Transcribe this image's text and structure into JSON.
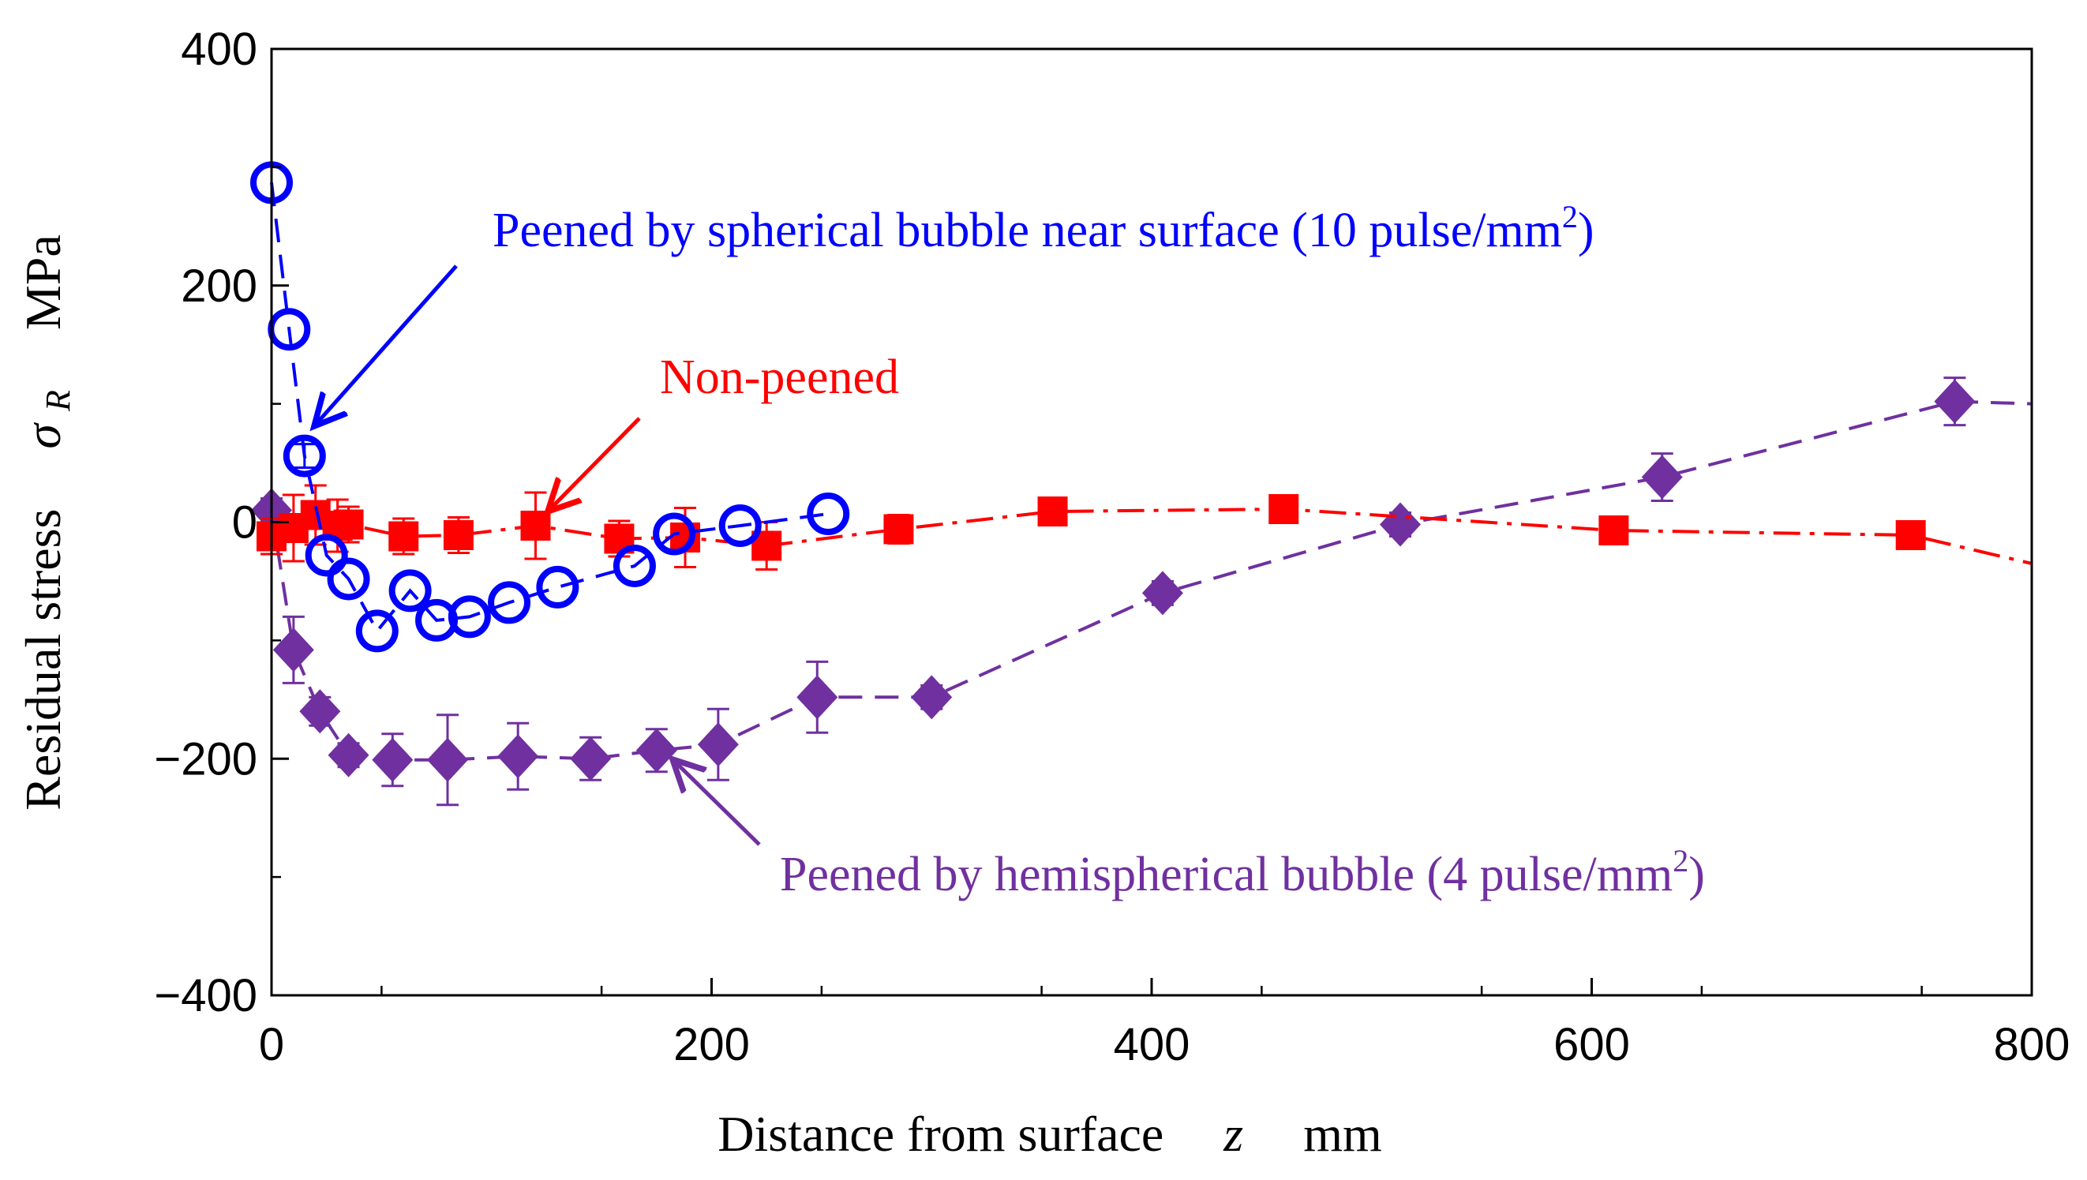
{
  "chart_data": {
    "type": "scatter",
    "title": "",
    "xlabel": {
      "text": "Distance from surface",
      "var": "z",
      "unit": "mm"
    },
    "ylabel": {
      "text": "Residual stress",
      "var": "σ",
      "sub": "R",
      "unit": "MPa"
    },
    "xlim": [
      0,
      800
    ],
    "ylim": [
      -400,
      400
    ],
    "xticks": [
      "0",
      "200",
      "400",
      "600",
      "800"
    ],
    "yticks": [
      "400",
      "200",
      "0",
      "−200",
      "−400"
    ],
    "xtick_values": [
      0,
      200,
      400,
      600,
      800
    ],
    "ytick_values": [
      400,
      200,
      0,
      -200,
      -400
    ],
    "grid": false,
    "series": [
      {
        "name": "Non-peened",
        "color": "#ff0000",
        "marker": "square",
        "line": "dash-dot",
        "x": [
          0,
          10,
          20,
          30,
          35,
          60,
          85,
          120,
          158,
          188,
          225,
          285,
          355,
          460,
          610,
          745,
          800
        ],
        "y": [
          -12,
          -5,
          6,
          -3,
          -2,
          -12,
          -11,
          -3,
          -14,
          -13,
          -20,
          -6,
          9,
          11,
          -7,
          -11,
          -35
        ],
        "err": [
          15,
          28,
          25,
          22,
          15,
          15,
          15,
          28,
          15,
          25,
          20,
          12,
          8,
          8,
          8,
          8,
          0
        ]
      },
      {
        "name": "Peened by spherical bubble near surface (10 pulse/mm2)",
        "color": "#0000ff",
        "marker": "circle-open",
        "line": "dashed",
        "x": [
          0,
          8,
          15,
          25,
          35,
          48,
          63,
          75,
          90,
          108,
          130,
          165,
          183,
          213,
          253
        ],
        "y": [
          287,
          163,
          56,
          -28,
          -48,
          -92,
          -58,
          -83,
          -80,
          -68,
          -55,
          -37,
          -10,
          -3,
          7
        ],
        "err": [
          0,
          0,
          10,
          0,
          0,
          0,
          0,
          0,
          0,
          0,
          0,
          0,
          0,
          0,
          0
        ]
      },
      {
        "name": "Peened by hemispherical bubble (4 pulse/mm2)",
        "color": "#7030a0",
        "marker": "diamond",
        "line": "dashed",
        "x": [
          0,
          10,
          22,
          35,
          55,
          80,
          112,
          145,
          175,
          203,
          248,
          300,
          405,
          513,
          632,
          765,
          800
        ],
        "y": [
          10,
          -108,
          -160,
          -197,
          -201,
          -201,
          -198,
          -200,
          -193,
          -188,
          -148,
          -148,
          -60,
          -2,
          38,
          102,
          100
        ],
        "err": [
          10,
          28,
          12,
          10,
          22,
          38,
          28,
          18,
          18,
          30,
          30,
          10,
          10,
          10,
          20,
          20,
          0
        ]
      }
    ],
    "annotations": [
      {
        "series": 0,
        "text": "Non-peened"
      },
      {
        "series": 1,
        "text": "Peened by spherical bubble near surface (10 pulse/mm",
        "sup": "2",
        "close": ")"
      },
      {
        "series": 2,
        "text": "Peened by hemispherical bubble (4 pulse/mm",
        "sup": "2",
        "close": ")"
      }
    ]
  }
}
